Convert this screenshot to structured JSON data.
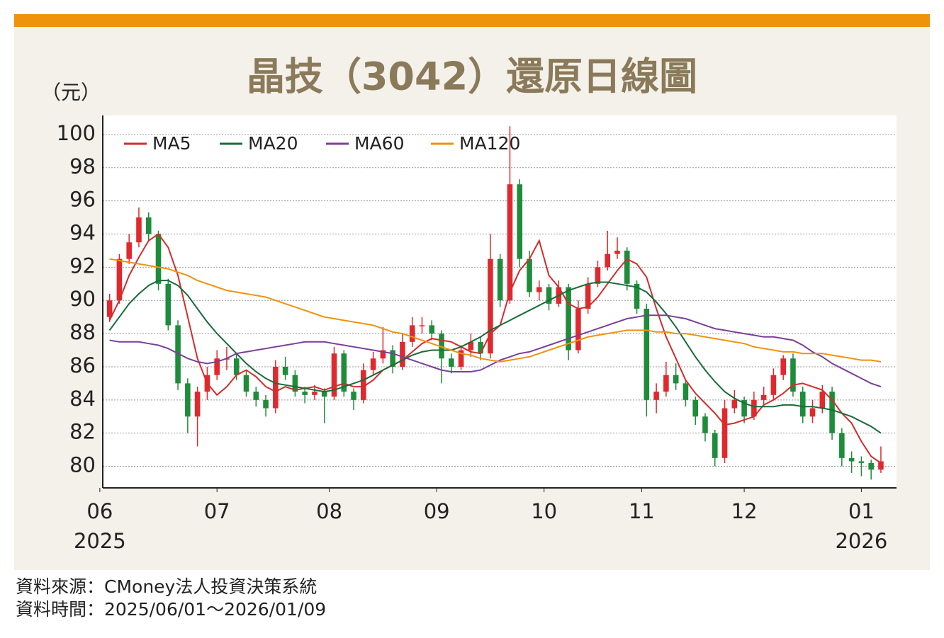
{
  "chart_data": {
    "type": "candlestick",
    "title": "晶技（3042）還原日線圖",
    "y_label": "（元）",
    "up_color": "#e0292e",
    "down_color": "#1e8c3a",
    "candles": [
      [
        89,
        90.4,
        88.7,
        90
      ],
      [
        90,
        92.8,
        89.8,
        92.5
      ],
      [
        92.5,
        94,
        92.2,
        93.5
      ],
      [
        93.5,
        95.6,
        93.2,
        95
      ],
      [
        95,
        95.3,
        93.6,
        94
      ],
      [
        94,
        94.2,
        90.6,
        91
      ],
      [
        91,
        91.3,
        88.2,
        88.5
      ],
      [
        88.5,
        88.8,
        84.6,
        85
      ],
      [
        85,
        85.3,
        82,
        83
      ],
      [
        83,
        84.8,
        81.2,
        84.5
      ],
      [
        84.5,
        86,
        84,
        85.5
      ],
      [
        85.5,
        87,
        85.2,
        86.5
      ],
      [
        86.5,
        87.2,
        85.8,
        86.5
      ],
      [
        86.5,
        86.8,
        85.2,
        85.5
      ],
      [
        85.5,
        85.8,
        84.2,
        84.5
      ],
      [
        84.5,
        84.8,
        83.6,
        84
      ],
      [
        84,
        84.3,
        83,
        83.5
      ],
      [
        83.5,
        86.4,
        83.2,
        86
      ],
      [
        86,
        86.6,
        85.2,
        85.5
      ],
      [
        85.5,
        85.8,
        84.2,
        84.5
      ],
      [
        84.5,
        84.8,
        83.8,
        84.3
      ],
      [
        84.3,
        84.9,
        84,
        84.5
      ],
      [
        84.5,
        84.7,
        82.6,
        84.2
      ],
      [
        84.2,
        87.2,
        84,
        86.8
      ],
      [
        86.8,
        87,
        84.2,
        84.5
      ],
      [
        84.5,
        84.7,
        83.4,
        84
      ],
      [
        84,
        86.2,
        83.8,
        85.8
      ],
      [
        85.8,
        86.9,
        85.5,
        86.5
      ],
      [
        86.5,
        88.4,
        86.2,
        87
      ],
      [
        87,
        87.3,
        85.6,
        86
      ],
      [
        86,
        88,
        85.8,
        87.5
      ],
      [
        87.5,
        89,
        87.2,
        88.5
      ],
      [
        88.5,
        89,
        88,
        88.5
      ],
      [
        88.5,
        88.8,
        87.6,
        88
      ],
      [
        88,
        88.2,
        85,
        86.5
      ],
      [
        86.5,
        86.8,
        85.6,
        86
      ],
      [
        86,
        87.3,
        85.8,
        87
      ],
      [
        87,
        88,
        86.6,
        87.5
      ],
      [
        87.5,
        87.8,
        86.4,
        86.8
      ],
      [
        86.8,
        94,
        86.5,
        92.5
      ],
      [
        92.5,
        92.8,
        89.6,
        90
      ],
      [
        90,
        100.5,
        89.8,
        97
      ],
      [
        97,
        97.3,
        92,
        92.5
      ],
      [
        92.5,
        93,
        90.2,
        90.5
      ],
      [
        90.5,
        91.2,
        90,
        90.8
      ],
      [
        90.8,
        91,
        89.4,
        89.8
      ],
      [
        89.8,
        91.2,
        89.6,
        90.8
      ],
      [
        90.8,
        91,
        86.4,
        87
      ],
      [
        87,
        90,
        86.8,
        89.5
      ],
      [
        89.5,
        91.4,
        89.2,
        91
      ],
      [
        91,
        92.4,
        90.8,
        92
      ],
      [
        92,
        94.2,
        91.8,
        92.8
      ],
      [
        92.8,
        93.8,
        92.5,
        93
      ],
      [
        93,
        93.2,
        90.6,
        91
      ],
      [
        91,
        91.2,
        89.2,
        89.5
      ],
      [
        89.5,
        89.8,
        83,
        84
      ],
      [
        84,
        85,
        83.2,
        84.5
      ],
      [
        84.5,
        86.3,
        84.2,
        85.5
      ],
      [
        85.5,
        86.2,
        84.6,
        85
      ],
      [
        85,
        85.2,
        83.6,
        84
      ],
      [
        84,
        84.2,
        82.5,
        83
      ],
      [
        83,
        83.2,
        81.5,
        82
      ],
      [
        82,
        82.2,
        80,
        80.5
      ],
      [
        80.5,
        84,
        80.2,
        83.5
      ],
      [
        83.5,
        84.6,
        83.2,
        84
      ],
      [
        84,
        84.2,
        82.6,
        83
      ],
      [
        83,
        84.5,
        82.8,
        84
      ],
      [
        84,
        84.8,
        83.6,
        84.3
      ],
      [
        84.3,
        85.9,
        84,
        85.5
      ],
      [
        85.5,
        86.7,
        85.2,
        86.5
      ],
      [
        86.5,
        86.8,
        84.2,
        84.5
      ],
      [
        84.5,
        84.8,
        82.6,
        83
      ],
      [
        83,
        84,
        82.6,
        83.5
      ],
      [
        83.5,
        84.9,
        83.2,
        84.5
      ],
      [
        84.5,
        84.8,
        81.6,
        82
      ],
      [
        82,
        82.3,
        80,
        80.5
      ],
      [
        80.5,
        80.9,
        79.6,
        80.3
      ],
      [
        80.3,
        80.6,
        79.4,
        80.2
      ],
      [
        80.2,
        80.4,
        79.2,
        79.8
      ],
      [
        79.8,
        81.2,
        79.6,
        80.3
      ]
    ],
    "series": [
      {
        "name": "MA5",
        "color": "#d52b2b",
        "values": [
          88.8,
          90,
          91.5,
          92.6,
          93.6,
          94,
          93.2,
          91.5,
          89,
          86.5,
          85,
          84.3,
          84.8,
          85.5,
          85.8,
          85.4,
          84.8,
          84.5,
          84.8,
          84.6,
          84.7,
          84.8,
          84.6,
          84.8,
          85,
          84.8,
          84.8,
          85.2,
          85.8,
          86.1,
          86.4,
          86.9,
          87.4,
          87.7,
          87.6,
          87.5,
          87.2,
          86.9,
          86.8,
          88,
          88.5,
          90.5,
          91.8,
          92.5,
          93.6,
          91.5,
          90.8,
          89.8,
          89.5,
          89.6,
          90.2,
          91,
          91.8,
          92.5,
          92.2,
          91.4,
          89.5,
          87.8,
          86.5,
          85.2,
          84.4,
          83.8,
          83.2,
          82.5,
          82.6,
          82.8,
          83,
          83.7,
          84,
          84.4,
          84.9,
          85,
          84.8,
          84.6,
          84,
          83.2,
          82.6,
          81.5,
          80.6,
          80.2
        ]
      },
      {
        "name": "MA20",
        "color": "#1a6b3a",
        "values": [
          88.2,
          89,
          89.8,
          90.4,
          90.9,
          91.2,
          91.2,
          90.9,
          90.3,
          89.5,
          88.7,
          88,
          87.4,
          86.8,
          86.2,
          85.7,
          85.3,
          85,
          84.9,
          84.8,
          84.7,
          84.6,
          84.5,
          84.6,
          84.8,
          85,
          85.2,
          85.5,
          85.8,
          86.1,
          86.4,
          86.7,
          86.9,
          87,
          87,
          87,
          87.2,
          87.5,
          87.8,
          88.2,
          88.5,
          88.8,
          89.1,
          89.4,
          89.7,
          90,
          90.3,
          90.6,
          90.8,
          91,
          91.1,
          91.1,
          91,
          90.9,
          90.8,
          90.5,
          89.9,
          89.2,
          88.4,
          87.5,
          86.6,
          85.8,
          85.1,
          84.5,
          84.1,
          83.8,
          83.6,
          83.6,
          83.6,
          83.7,
          83.7,
          83.6,
          83.6,
          83.5,
          83.4,
          83.2,
          83,
          82.7,
          82.4,
          82
        ]
      },
      {
        "name": "MA60",
        "color": "#7b3f98",
        "values": [
          87.6,
          87.5,
          87.5,
          87.5,
          87.4,
          87.3,
          87.1,
          86.8,
          86.5,
          86.3,
          86.2,
          86.3,
          86.5,
          86.8,
          86.9,
          87,
          87.1,
          87.2,
          87.3,
          87.4,
          87.5,
          87.5,
          87.5,
          87.4,
          87.3,
          87.2,
          87.1,
          87,
          86.9,
          86.8,
          86.6,
          86.4,
          86.2,
          86,
          85.8,
          85.7,
          85.7,
          85.7,
          85.8,
          86.1,
          86.4,
          86.6,
          86.8,
          86.9,
          87.1,
          87.3,
          87.5,
          87.7,
          87.9,
          88.1,
          88.3,
          88.5,
          88.7,
          88.9,
          89,
          89.1,
          89.1,
          89.1,
          89,
          88.9,
          88.7,
          88.5,
          88.3,
          88.2,
          88.1,
          88,
          87.9,
          87.8,
          87.8,
          87.7,
          87.6,
          87.3,
          86.9,
          86.6,
          86.2,
          85.9,
          85.6,
          85.3,
          85,
          84.8
        ]
      },
      {
        "name": "MA120",
        "color": "#f0920a",
        "values": [
          92.5,
          92.4,
          92.3,
          92.2,
          92.1,
          92,
          91.9,
          91.7,
          91.5,
          91.2,
          91,
          90.8,
          90.6,
          90.5,
          90.4,
          90.3,
          90.2,
          90,
          89.8,
          89.6,
          89.4,
          89.2,
          89,
          88.9,
          88.8,
          88.7,
          88.6,
          88.5,
          88.3,
          88.1,
          88,
          87.8,
          87.6,
          87.4,
          87.2,
          87,
          86.8,
          86.7,
          86.5,
          86.4,
          86.3,
          86.4,
          86.5,
          86.6,
          86.8,
          87,
          87.2,
          87.4,
          87.6,
          87.8,
          87.9,
          88,
          88.1,
          88.2,
          88.2,
          88.2,
          88.1,
          88.1,
          88,
          88,
          87.9,
          87.8,
          87.7,
          87.6,
          87.5,
          87.4,
          87.2,
          87.1,
          87,
          86.9,
          86.9,
          86.8,
          86.8,
          86.8,
          86.7,
          86.6,
          86.5,
          86.4,
          86.4,
          86.3
        ]
      }
    ],
    "xlim": [
      -0.7,
      80.6
    ],
    "xticks": [
      {
        "value": -1,
        "label": "06",
        "sublabel": "2025"
      },
      {
        "value": 11,
        "label": "07"
      },
      {
        "value": 22.5,
        "label": "08"
      },
      {
        "value": 33.5,
        "label": "09"
      },
      {
        "value": 44.5,
        "label": "10"
      },
      {
        "value": 54.5,
        "label": "11"
      },
      {
        "value": 65,
        "label": "12"
      },
      {
        "value": 77,
        "label": "01",
        "sublabel": "2026"
      }
    ],
    "ylim": [
      78.7,
      101.15
    ],
    "yticks": [
      80,
      82,
      84,
      86,
      88,
      90,
      92,
      94,
      96,
      98,
      100
    ],
    "grid": true
  },
  "footer": {
    "source": "資料來源：CMoney法人投資決策系統",
    "period": "資料時間：2025/06/01～2026/01/09"
  }
}
